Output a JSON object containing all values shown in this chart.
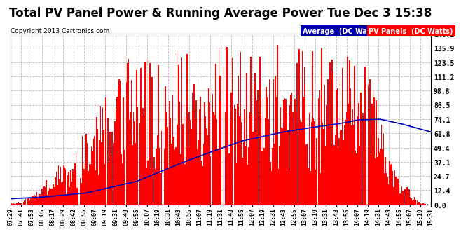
{
  "title": "Total PV Panel Power & Running Average Power Tue Dec 3 15:38",
  "copyright": "Copyright 2013 Cartronics.com",
  "legend_avg_label": "Average  (DC Watts)",
  "legend_pv_label": "PV Panels  (DC Watts)",
  "yticks": [
    0.0,
    12.4,
    24.7,
    37.1,
    49.4,
    61.8,
    74.1,
    86.5,
    98.8,
    111.2,
    123.5,
    135.9,
    148.2
  ],
  "ymax": 148.2,
  "ymin": 0.0,
  "bar_color": "#ff0000",
  "avg_line_color": "#0000bb",
  "background_color": "#ffffff",
  "plot_bg_color": "#ffffff",
  "grid_color": "#bbbbbb",
  "title_fontsize": 12,
  "xtick_labels": [
    "07:29",
    "07:41",
    "07:53",
    "08:05",
    "08:17",
    "08:29",
    "08:42",
    "08:55",
    "09:07",
    "09:19",
    "09:31",
    "09:43",
    "09:55",
    "10:07",
    "10:19",
    "10:31",
    "10:43",
    "10:55",
    "11:07",
    "11:19",
    "11:31",
    "11:43",
    "11:55",
    "12:07",
    "12:19",
    "12:31",
    "12:43",
    "12:55",
    "13:07",
    "13:19",
    "13:31",
    "13:43",
    "13:55",
    "14:07",
    "14:19",
    "14:31",
    "14:43",
    "14:55",
    "15:07",
    "15:19",
    "15:31"
  ],
  "n_bars": 410,
  "avg_x": [
    0.0,
    0.08,
    0.18,
    0.3,
    0.42,
    0.55,
    0.65,
    0.72,
    0.78,
    0.83,
    0.88,
    0.93,
    1.0
  ],
  "avg_y": [
    5.0,
    6.5,
    10.0,
    20.0,
    38.0,
    55.0,
    63.0,
    67.0,
    70.0,
    73.5,
    74.0,
    70.0,
    63.0
  ]
}
